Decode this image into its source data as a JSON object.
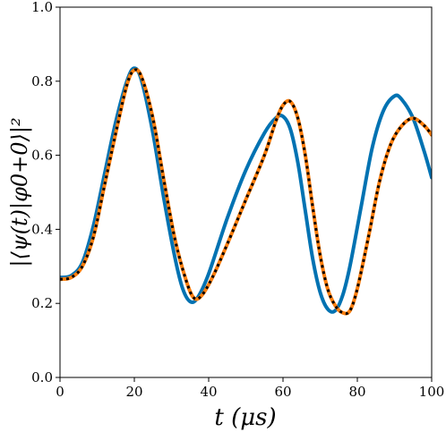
{
  "chart_data": {
    "type": "line",
    "xlabel": "t (μs)",
    "ylabel": "|⟨ψ(t)|φ0+0⟩|²",
    "xlim": [
      0,
      100
    ],
    "ylim": [
      0.0,
      1.0
    ],
    "x_ticks": [
      0,
      20,
      40,
      60,
      80,
      100
    ],
    "y_ticks": [
      0.0,
      0.2,
      0.4,
      0.6,
      0.8,
      1.0
    ],
    "x_tick_labels": [
      "0",
      "20",
      "40",
      "60",
      "80",
      "100"
    ],
    "y_tick_labels": [
      "0.0",
      "0.2",
      "0.4",
      "0.6",
      "0.8",
      "1.0"
    ],
    "grid": false,
    "series": [
      {
        "color": "#0072B2",
        "style": "solid",
        "points": [
          [
            0,
            0.27
          ],
          [
            3,
            0.275
          ],
          [
            6,
            0.31
          ],
          [
            9,
            0.41
          ],
          [
            12,
            0.55
          ],
          [
            15,
            0.69
          ],
          [
            18,
            0.8
          ],
          [
            20,
            0.835
          ],
          [
            22,
            0.8
          ],
          [
            25,
            0.66
          ],
          [
            28,
            0.48
          ],
          [
            31,
            0.32
          ],
          [
            33,
            0.24
          ],
          [
            35,
            0.205
          ],
          [
            37,
            0.215
          ],
          [
            40,
            0.28
          ],
          [
            45,
            0.43
          ],
          [
            50,
            0.56
          ],
          [
            55,
            0.66
          ],
          [
            58,
            0.7
          ],
          [
            60,
            0.705
          ],
          [
            62,
            0.67
          ],
          [
            64,
            0.58
          ],
          [
            66,
            0.45
          ],
          [
            68,
            0.32
          ],
          [
            70,
            0.23
          ],
          [
            72,
            0.185
          ],
          [
            74,
            0.18
          ],
          [
            76,
            0.22
          ],
          [
            78,
            0.3
          ],
          [
            81,
            0.46
          ],
          [
            84,
            0.62
          ],
          [
            87,
            0.72
          ],
          [
            90,
            0.76
          ],
          [
            92,
            0.75
          ],
          [
            95,
            0.7
          ],
          [
            98,
            0.61
          ],
          [
            100,
            0.54
          ]
        ]
      },
      {
        "color": "#FF7F0E",
        "style": "solid",
        "points": [
          [
            0,
            0.265
          ],
          [
            3,
            0.27
          ],
          [
            6,
            0.3
          ],
          [
            9,
            0.38
          ],
          [
            12,
            0.52
          ],
          [
            15,
            0.66
          ],
          [
            18,
            0.79
          ],
          [
            20,
            0.83
          ],
          [
            22,
            0.81
          ],
          [
            25,
            0.7
          ],
          [
            28,
            0.53
          ],
          [
            31,
            0.37
          ],
          [
            34,
            0.26
          ],
          [
            36,
            0.215
          ],
          [
            38,
            0.22
          ],
          [
            41,
            0.27
          ],
          [
            45,
            0.36
          ],
          [
            50,
            0.48
          ],
          [
            55,
            0.6
          ],
          [
            58,
            0.69
          ],
          [
            60,
            0.735
          ],
          [
            62,
            0.745
          ],
          [
            64,
            0.7
          ],
          [
            66,
            0.6
          ],
          [
            68,
            0.46
          ],
          [
            70,
            0.33
          ],
          [
            72,
            0.24
          ],
          [
            74,
            0.195
          ],
          [
            76,
            0.175
          ],
          [
            78,
            0.18
          ],
          [
            80,
            0.24
          ],
          [
            83,
            0.38
          ],
          [
            86,
            0.53
          ],
          [
            89,
            0.63
          ],
          [
            92,
            0.68
          ],
          [
            95,
            0.7
          ],
          [
            98,
            0.68
          ],
          [
            100,
            0.655
          ]
        ]
      },
      {
        "color": "#000000",
        "style": "dotted",
        "points": [
          [
            0,
            0.265
          ],
          [
            3,
            0.27
          ],
          [
            6,
            0.3
          ],
          [
            9,
            0.38
          ],
          [
            12,
            0.52
          ],
          [
            15,
            0.66
          ],
          [
            18,
            0.79
          ],
          [
            20,
            0.83
          ],
          [
            22,
            0.81
          ],
          [
            25,
            0.7
          ],
          [
            28,
            0.53
          ],
          [
            31,
            0.37
          ],
          [
            34,
            0.26
          ],
          [
            36,
            0.215
          ],
          [
            38,
            0.22
          ],
          [
            41,
            0.27
          ],
          [
            45,
            0.36
          ],
          [
            50,
            0.48
          ],
          [
            55,
            0.6
          ],
          [
            58,
            0.69
          ],
          [
            60,
            0.735
          ],
          [
            62,
            0.745
          ],
          [
            64,
            0.7
          ],
          [
            66,
            0.6
          ],
          [
            68,
            0.46
          ],
          [
            70,
            0.33
          ],
          [
            72,
            0.24
          ],
          [
            74,
            0.195
          ],
          [
            76,
            0.175
          ],
          [
            78,
            0.18
          ],
          [
            80,
            0.24
          ],
          [
            83,
            0.38
          ],
          [
            86,
            0.53
          ],
          [
            89,
            0.63
          ],
          [
            92,
            0.68
          ],
          [
            95,
            0.7
          ],
          [
            98,
            0.68
          ],
          [
            100,
            0.655
          ]
        ]
      }
    ]
  }
}
